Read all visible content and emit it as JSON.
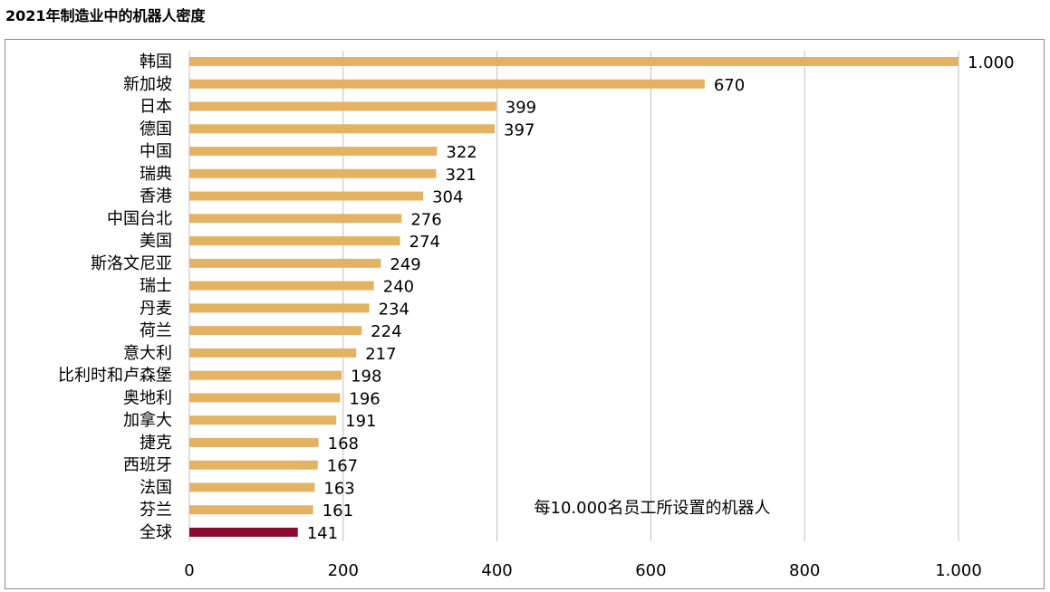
{
  "title": "2021年制造业中的机器人密度",
  "chart_data": {
    "type": "bar",
    "orientation": "horizontal",
    "title": "2021年制造业中的机器人密度",
    "annotation": "每10.000名员工所设置的机器人",
    "categories": [
      "韩国",
      "新加坡",
      "日本",
      "德国",
      "中国",
      "瑞典",
      "香港",
      "中国台北",
      "美国",
      "斯洛文尼亚",
      "瑞士",
      "丹麦",
      "荷兰",
      "意大利",
      "比利时和卢森堡",
      "奥地利",
      "加拿大",
      "捷克",
      "西班牙",
      "法国",
      "芬兰",
      "全球"
    ],
    "values": [
      1000,
      670,
      399,
      397,
      322,
      321,
      304,
      276,
      274,
      249,
      240,
      234,
      224,
      217,
      198,
      196,
      191,
      168,
      167,
      163,
      161,
      141
    ],
    "value_labels": [
      "1.000",
      "670",
      "399",
      "397",
      "322",
      "321",
      "304",
      "276",
      "274",
      "249",
      "240",
      "234",
      "224",
      "217",
      "198",
      "196",
      "191",
      "168",
      "167",
      "163",
      "161",
      "141"
    ],
    "xlim": [
      0,
      1000
    ],
    "xticks": [
      0,
      200,
      400,
      600,
      800,
      1000
    ],
    "xtick_labels": [
      "0",
      "200",
      "400",
      "600",
      "800",
      "1.000"
    ],
    "grid": true,
    "colors": {
      "bar": "#E3B363",
      "highlight": "#8B0A2E",
      "grid": "#BFBFBF"
    },
    "highlight_category": "全球"
  }
}
